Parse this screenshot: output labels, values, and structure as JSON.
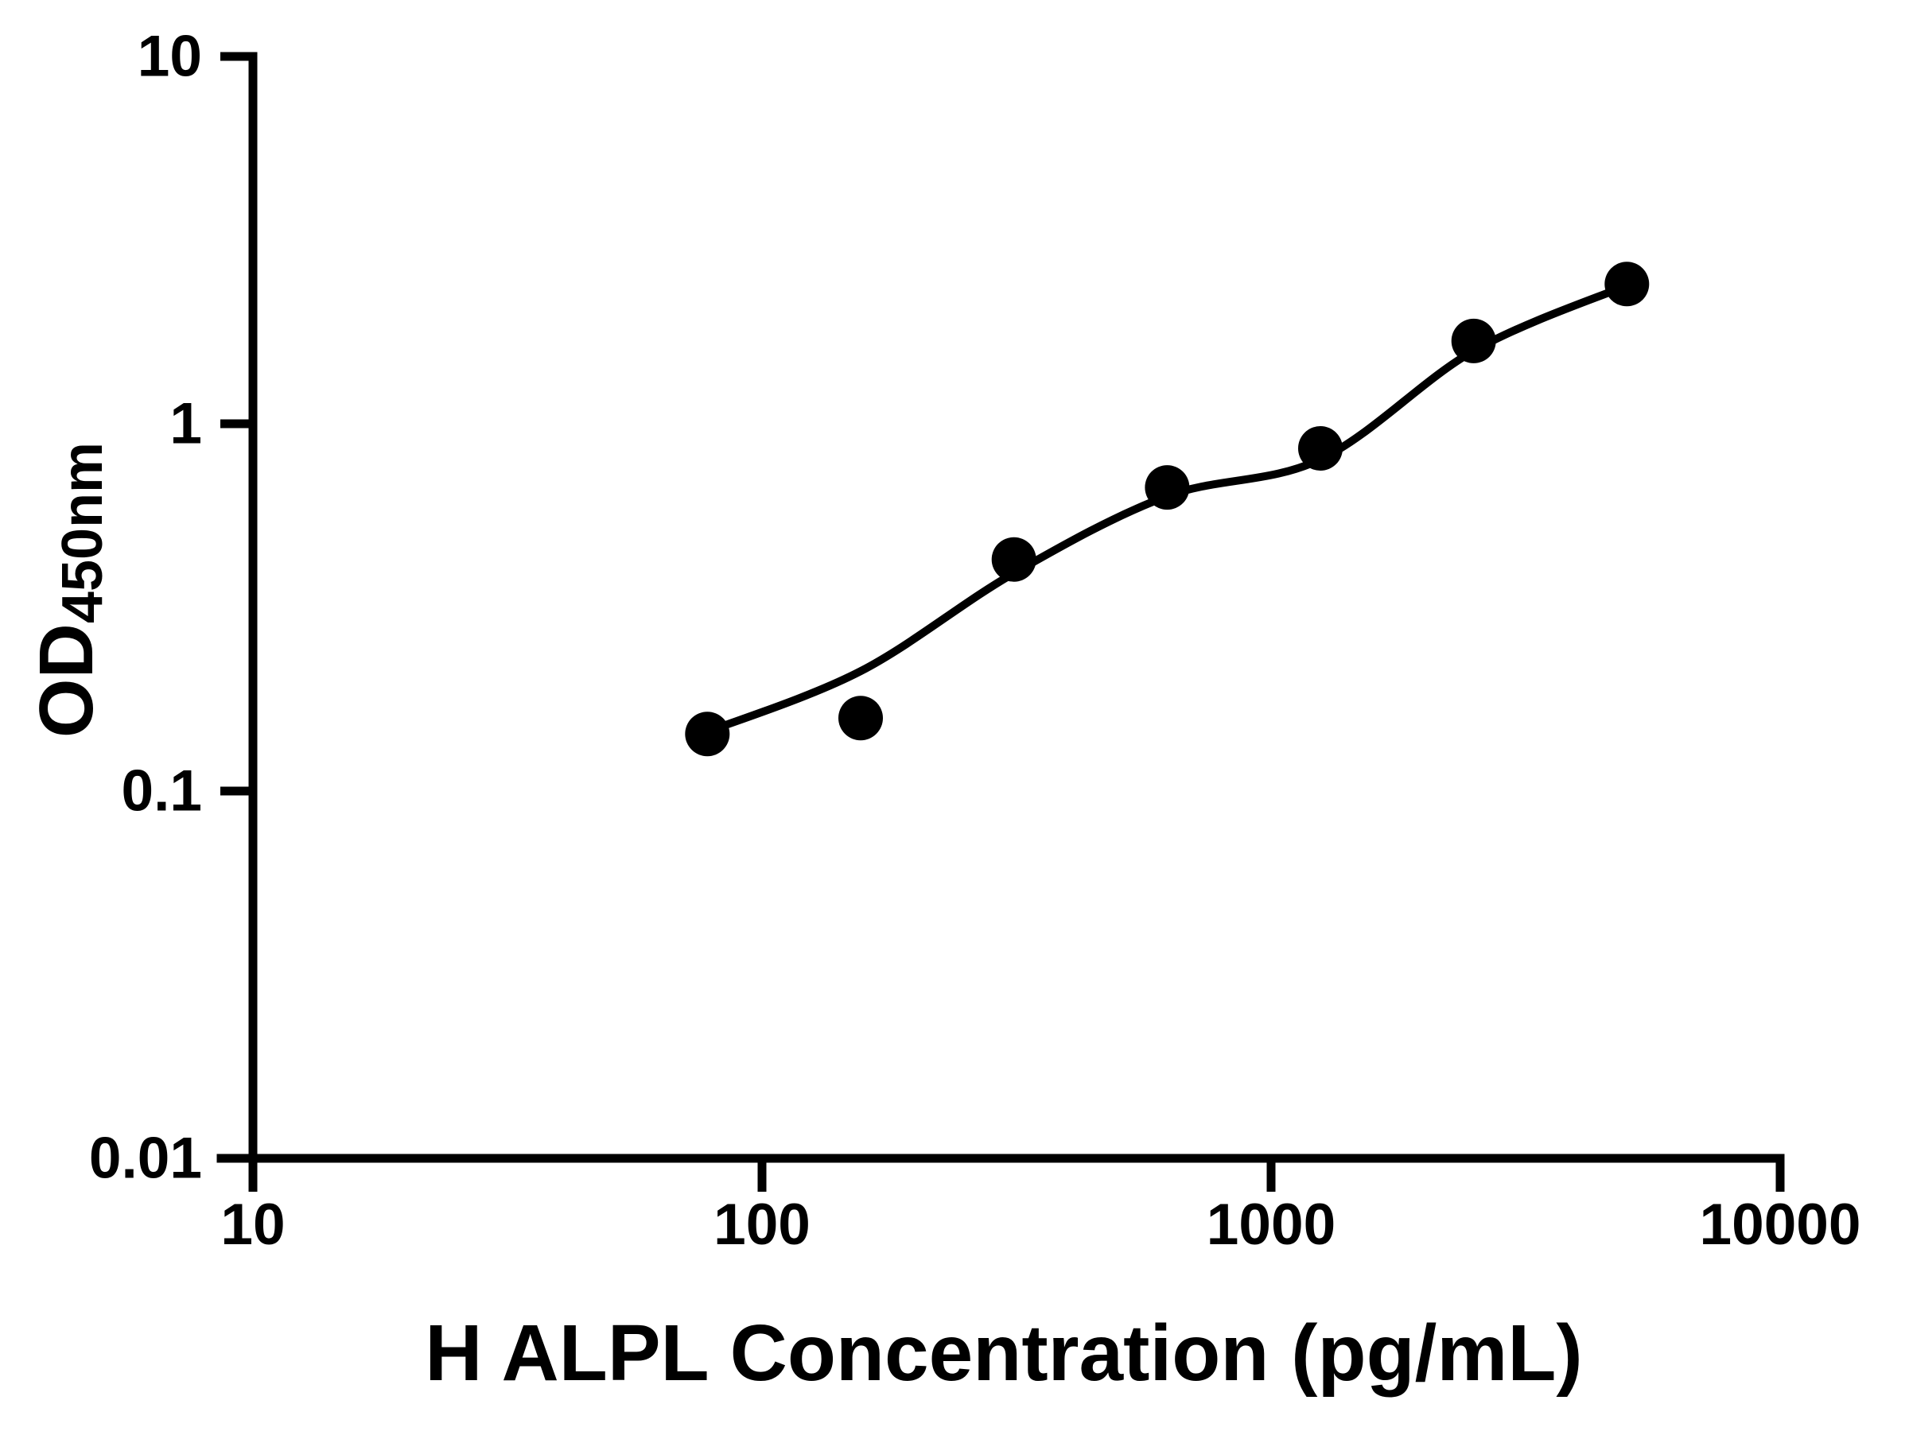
{
  "figure": {
    "background_color": "#ffffff",
    "foreground_color": "#000000"
  },
  "chart_data": {
    "type": "scatter",
    "title": "",
    "xlabel": "H ALPL Concentration (pg/mL)",
    "ylabel_main": "OD",
    "ylabel_sub": "450nm",
    "x_scale": "log",
    "y_scale": "log",
    "xlim": [
      10,
      10000
    ],
    "ylim": [
      0.01,
      10
    ],
    "x_ticks": [
      10,
      100,
      1000,
      10000
    ],
    "y_ticks": [
      0.01,
      0.1,
      1,
      10
    ],
    "grid": "off",
    "legend": "none",
    "marker_color": "#000000",
    "line_color": "#000000",
    "points": [
      {
        "conc": 78.1,
        "od": 0.143
      },
      {
        "conc": 156.2,
        "od": 0.158
      },
      {
        "conc": 312.5,
        "od": 0.427
      },
      {
        "conc": 625,
        "od": 0.671
      },
      {
        "conc": 1250,
        "od": 0.857
      },
      {
        "conc": 2500,
        "od": 1.68
      },
      {
        "conc": 5000,
        "od": 2.4
      }
    ],
    "curve": [
      {
        "conc": 78.1,
        "od": 0.145
      },
      {
        "conc": 156.2,
        "od": 0.212
      },
      {
        "conc": 312.5,
        "od": 0.392
      },
      {
        "conc": 625,
        "od": 0.635
      },
      {
        "conc": 1250,
        "od": 0.8
      },
      {
        "conc": 2500,
        "od": 1.58
      },
      {
        "conc": 5000,
        "od": 2.38
      }
    ]
  }
}
